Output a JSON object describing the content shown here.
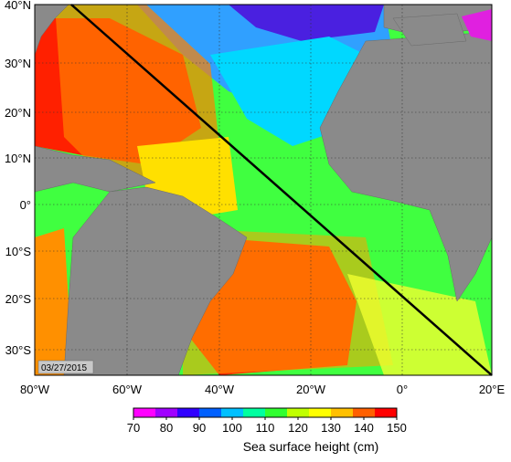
{
  "map": {
    "lat_labels": [
      "40°N",
      "30°N",
      "20°N",
      "10°N",
      "0°",
      "10°S",
      "20°S",
      "30°S"
    ],
    "lon_labels": [
      "80°W",
      "60°W",
      "40°W",
      "20°W",
      "0°",
      "20°E"
    ],
    "date_stamp": "03/27/2015",
    "land_color": "#8a8a8a",
    "track_color": "#000000"
  },
  "colorbar": {
    "tick_labels": [
      "70",
      "80",
      "90",
      "100",
      "110",
      "120",
      "130",
      "140",
      "150"
    ],
    "colors": [
      "#ff00ff",
      "#a000ff",
      "#3000ff",
      "#0060ff",
      "#00c0ff",
      "#00ffa0",
      "#30ff30",
      "#c0ff00",
      "#ffff00",
      "#ffc000",
      "#ff6000",
      "#ff0000"
    ],
    "title": "Sea surface height (cm)",
    "range": [
      70,
      150
    ]
  }
}
